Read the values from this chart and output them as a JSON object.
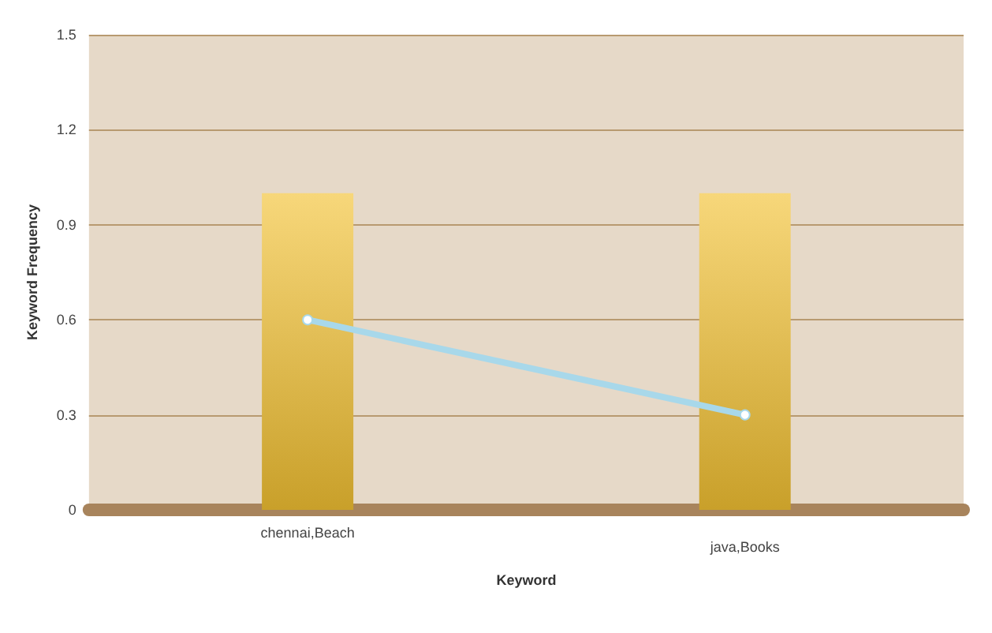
{
  "chart_data": {
    "type": "bar",
    "xlabel": "Keyword",
    "ylabel": "Keyword Frequency",
    "categories": [
      "chennai,Beach",
      "java,Books"
    ],
    "series": [
      {
        "color": "#c9a02a",
        "values": [
          1,
          1
        ]
      },
      {
        "type": "line",
        "color": "#a8d8ea",
        "values": [
          0.6,
          0.3
        ],
        "marker": "circle"
      }
    ],
    "ylim": [
      0,
      1.5
    ],
    "yticks": [
      0,
      0.3,
      0.6,
      0.9,
      1.2,
      1.5
    ],
    "grid": "y"
  }
}
